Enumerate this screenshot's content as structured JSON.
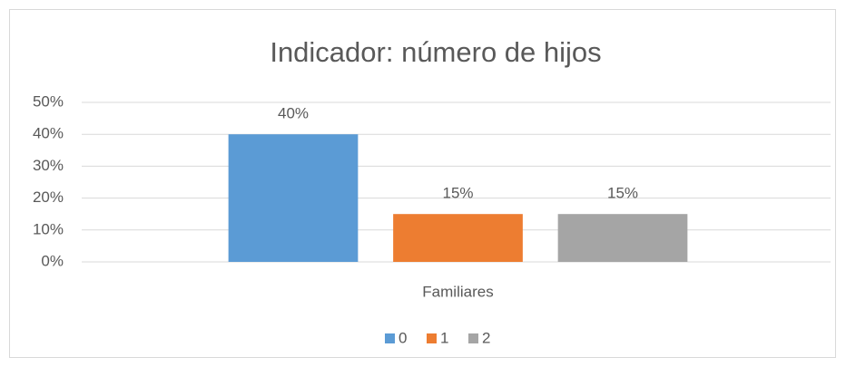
{
  "chart_data": {
    "type": "bar",
    "title": "Indicador: número de hijos",
    "categories": [
      "Familiares"
    ],
    "series": [
      {
        "name": "0",
        "color": "#5b9bd5",
        "values": [
          40
        ],
        "value_labels": [
          "40%"
        ]
      },
      {
        "name": "1",
        "color": "#ed7d31",
        "values": [
          15
        ],
        "value_labels": [
          "15%"
        ]
      },
      {
        "name": "2",
        "color": "#a5a5a5",
        "values": [
          15
        ],
        "value_labels": [
          "15%"
        ]
      }
    ],
    "ylim": [
      0,
      50
    ],
    "yticks": [
      {
        "value": 0,
        "label": "0%"
      },
      {
        "value": 10,
        "label": "10%"
      },
      {
        "value": 20,
        "label": "20%"
      },
      {
        "value": 30,
        "label": "30%"
      },
      {
        "value": 40,
        "label": "40%"
      },
      {
        "value": 50,
        "label": "50%"
      }
    ],
    "grid": true,
    "legend": "bottom"
  }
}
